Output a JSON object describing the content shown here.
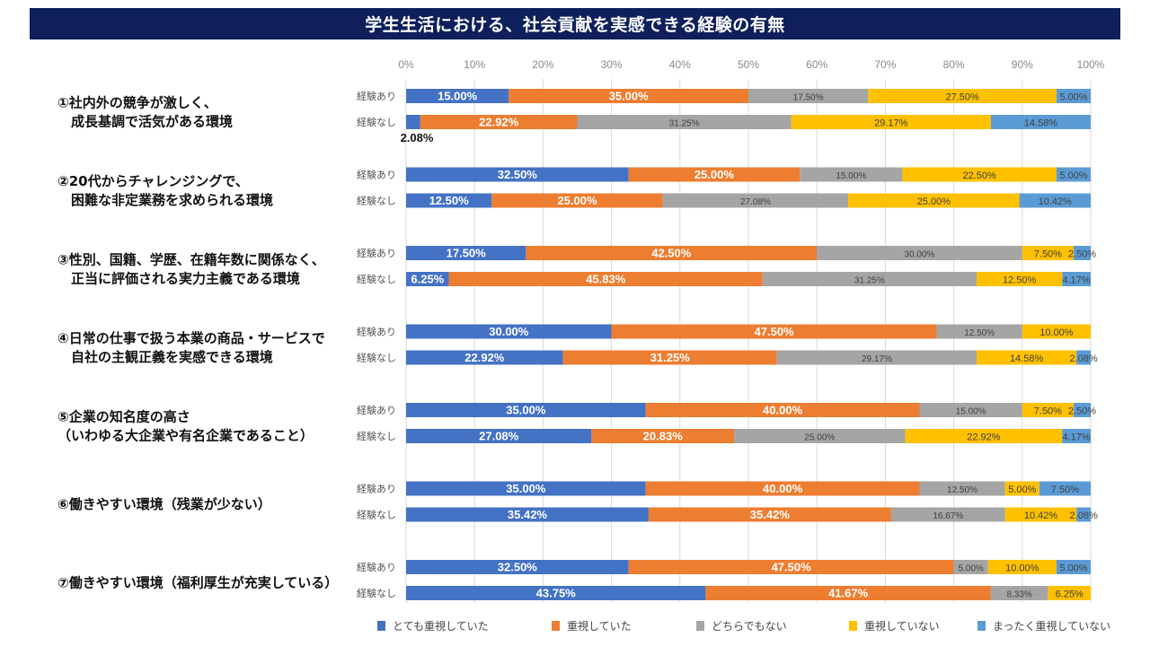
{
  "header": {
    "title": "学生生活における、社会貢献を実感できる経験の有無"
  },
  "chart_data": {
    "type": "bar",
    "orientation": "horizontal",
    "stacked": "100%",
    "title": "学生生活における、社会貢献を実感できる経験の有無",
    "xlim": [
      0,
      100
    ],
    "x_ticks": [
      "0%",
      "10%",
      "20%",
      "30%",
      "40%",
      "50%",
      "60%",
      "70%",
      "80%",
      "90%",
      "100%"
    ],
    "grid": true,
    "legend_position": "bottom",
    "series": [
      {
        "name": "とても重視していた",
        "color": "#4472c4"
      },
      {
        "name": "重視していた",
        "color": "#ed7d31"
      },
      {
        "name": "どちらでもない",
        "color": "#a5a5a5"
      },
      {
        "name": "重視していない",
        "color": "#ffc000"
      },
      {
        "name": "まったく重視していない",
        "color": "#5b9bd5"
      }
    ],
    "categories": [
      {
        "label_lines": [
          "①社内外の競争が激しく、",
          "　成長基調で活気がある環境"
        ],
        "rows": [
          {
            "label": "経験あり",
            "values": [
              15.0,
              35.0,
              17.5,
              27.5,
              5.0
            ]
          },
          {
            "label": "経験なし",
            "values": [
              2.08,
              22.92,
              31.25,
              29.17,
              14.58
            ]
          }
        ]
      },
      {
        "label_lines": [
          "②20代からチャレンジングで、",
          "　困難な非定業務を求められる環境"
        ],
        "rows": [
          {
            "label": "経験あり",
            "values": [
              32.5,
              25.0,
              15.0,
              22.5,
              5.0
            ]
          },
          {
            "label": "経験なし",
            "values": [
              12.5,
              25.0,
              27.08,
              25.0,
              10.42
            ]
          }
        ]
      },
      {
        "label_lines": [
          "③性別、国籍、学歴、在籍年数に関係なく、",
          "　正当に評価される実力主義である環境"
        ],
        "rows": [
          {
            "label": "経験あり",
            "values": [
              17.5,
              42.5,
              30.0,
              7.5,
              2.5
            ]
          },
          {
            "label": "経験なし",
            "values": [
              6.25,
              45.83,
              31.25,
              12.5,
              4.17
            ]
          }
        ]
      },
      {
        "label_lines": [
          "④日常の仕事で扱う本業の商品・サービスで",
          "　自社の主観正義を実感できる環境"
        ],
        "rows": [
          {
            "label": "経験あり",
            "values": [
              30.0,
              47.5,
              12.5,
              10.0,
              0
            ]
          },
          {
            "label": "経験なし",
            "values": [
              22.92,
              31.25,
              29.17,
              14.58,
              2.08
            ]
          }
        ]
      },
      {
        "label_lines": [
          "⑤企業の知名度の高さ",
          "（いわゆる大企業や有名企業であること）"
        ],
        "rows": [
          {
            "label": "経験あり",
            "values": [
              35.0,
              40.0,
              15.0,
              7.5,
              2.5
            ]
          },
          {
            "label": "経験なし",
            "values": [
              27.08,
              20.83,
              25.0,
              22.92,
              4.17
            ]
          }
        ]
      },
      {
        "label_lines": [
          "⑥働きやすい環境（残業が少ない）"
        ],
        "rows": [
          {
            "label": "経験あり",
            "values": [
              35.0,
              40.0,
              12.5,
              5.0,
              7.5
            ]
          },
          {
            "label": "経験なし",
            "values": [
              35.42,
              35.42,
              16.67,
              10.42,
              2.08
            ]
          }
        ]
      },
      {
        "label_lines": [
          "⑦働きやすい環境（福利厚生が充実している）"
        ],
        "rows": [
          {
            "label": "経験あり",
            "values": [
              32.5,
              47.5,
              5.0,
              10.0,
              5.0
            ]
          },
          {
            "label": "経験なし",
            "values": [
              43.75,
              41.67,
              8.33,
              6.25,
              0
            ]
          }
        ]
      }
    ]
  }
}
